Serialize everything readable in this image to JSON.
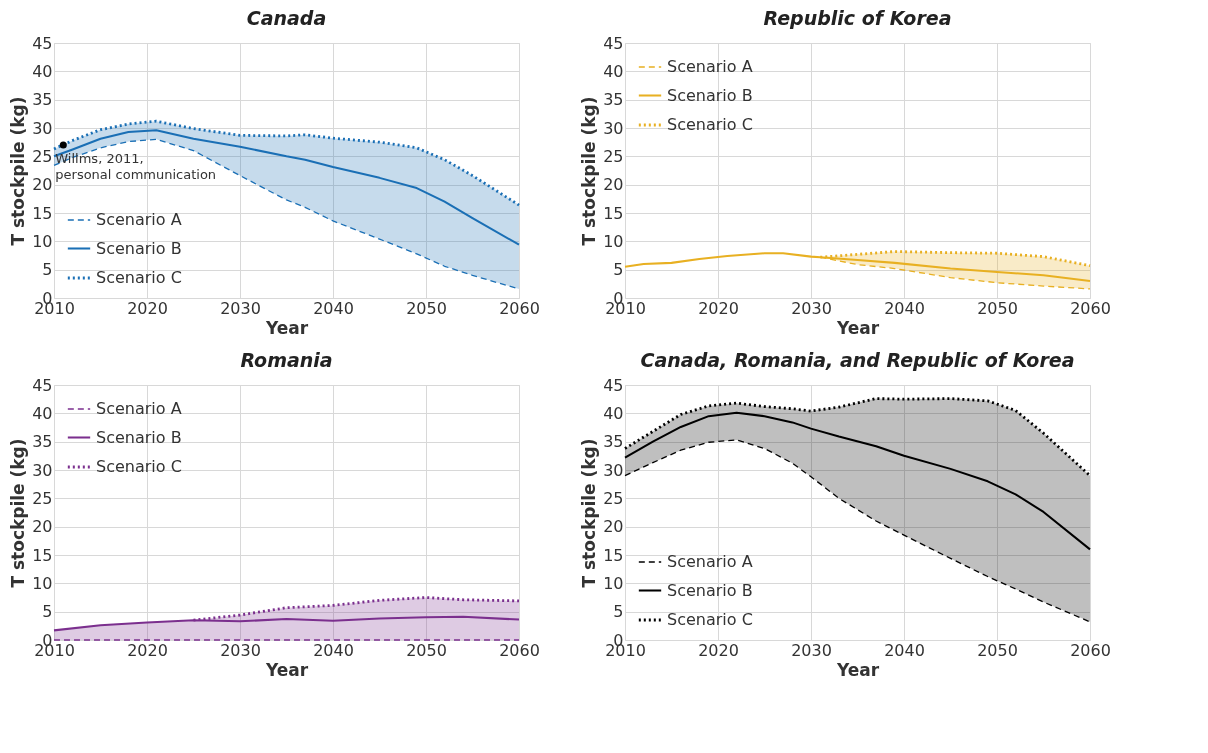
{
  "chart_data": [
    {
      "type": "line",
      "title": "Canada",
      "xlabel": "Year",
      "ylabel": "T stockpile (kg)",
      "x": [
        2010,
        2012,
        2015,
        2018,
        2021,
        2025,
        2030,
        2035,
        2037,
        2040,
        2045,
        2049,
        2052,
        2055,
        2060
      ],
      "xlim": [
        2010,
        2060
      ],
      "xticks": [
        2010,
        2020,
        2030,
        2040,
        2050,
        2060
      ],
      "ylim": [
        0,
        45
      ],
      "yticks": [
        0,
        5,
        10,
        15,
        20,
        25,
        30,
        35,
        40,
        45
      ],
      "grid": true,
      "legend": "bottom left",
      "series": [
        {
          "name": "Scenario A",
          "color": "#1a6fb5",
          "line_style": "dashed",
          "values": [
            23.4,
            24.8,
            26.5,
            27.6,
            28.0,
            26.0,
            21.6,
            17.3,
            16.0,
            13.6,
            10.4,
            7.8,
            5.6,
            4.0,
            1.6
          ]
        },
        {
          "name": "Scenario B",
          "color": "#1a6fb5",
          "line_style": "solid",
          "values": [
            25.0,
            26.2,
            28.1,
            29.3,
            29.6,
            28.1,
            26.7,
            25.0,
            24.4,
            23.1,
            21.2,
            19.4,
            17.0,
            14.1,
            9.4
          ],
          "lower": [
            23.4,
            24.8,
            26.5,
            27.6,
            28.0,
            26.0,
            21.6,
            17.3,
            16.0,
            13.6,
            10.4,
            7.8,
            5.6,
            4.0,
            1.6
          ],
          "upper": [
            26.3,
            27.8,
            29.7,
            30.7,
            31.2,
            29.9,
            28.7,
            28.6,
            28.8,
            28.2,
            27.5,
            26.5,
            24.4,
            21.6,
            16.4
          ]
        },
        {
          "name": "Scenario C",
          "color": "#1a6fb5",
          "line_style": "dotted",
          "values": [
            26.3,
            27.8,
            29.7,
            30.7,
            31.2,
            29.9,
            28.7,
            28.6,
            28.8,
            28.2,
            27.5,
            26.5,
            24.4,
            21.6,
            16.4
          ]
        }
      ],
      "annotations": [
        {
          "text": "Willms, 2011,\npersonal communication",
          "x": 2011,
          "y": 27
        }
      ]
    },
    {
      "type": "line",
      "title": "Republic of Korea",
      "xlabel": "Year",
      "ylabel": "T stockpile (kg)",
      "x": [
        2010,
        2012,
        2015,
        2018,
        2021,
        2025,
        2027,
        2030,
        2031,
        2035,
        2039,
        2045,
        2050,
        2055,
        2060
      ],
      "xlim": [
        2010,
        2060
      ],
      "xticks": [
        2010,
        2020,
        2030,
        2040,
        2050,
        2060
      ],
      "ylim": [
        0,
        45
      ],
      "yticks": [
        0,
        5,
        10,
        15,
        20,
        25,
        30,
        35,
        40,
        45
      ],
      "grid": true,
      "legend": "top left",
      "series": [
        {
          "name": "Scenario A",
          "color": "#e8b022",
          "line_style": "dashed",
          "values": [
            null,
            null,
            null,
            null,
            null,
            null,
            null,
            null,
            7.2,
            5.9,
            5.2,
            3.6,
            2.7,
            2.1,
            1.6
          ]
        },
        {
          "name": "Scenario B",
          "color": "#e8b022",
          "line_style": "solid",
          "values": [
            5.5,
            6.0,
            6.2,
            6.9,
            7.4,
            7.9,
            7.9,
            7.3,
            7.2,
            6.7,
            6.2,
            5.2,
            4.6,
            4.0,
            3.0
          ],
          "lower": [
            null,
            null,
            null,
            null,
            null,
            null,
            null,
            null,
            7.2,
            5.9,
            5.2,
            3.6,
            2.7,
            2.1,
            1.6
          ],
          "upper": [
            null,
            null,
            null,
            null,
            null,
            null,
            null,
            null,
            7.2,
            7.7,
            8.2,
            8.0,
            7.9,
            7.3,
            5.7
          ]
        },
        {
          "name": "Scenario C",
          "color": "#e8b022",
          "line_style": "dotted",
          "values": [
            null,
            null,
            null,
            null,
            null,
            null,
            null,
            null,
            7.2,
            7.7,
            8.2,
            8.0,
            7.9,
            7.3,
            5.7
          ]
        }
      ]
    },
    {
      "type": "line",
      "title": "Romania",
      "xlabel": "Year",
      "ylabel": "T stockpile (kg)",
      "x": [
        2010,
        2015,
        2020,
        2025,
        2030,
        2035,
        2040,
        2045,
        2050,
        2054,
        2060
      ],
      "xlim": [
        2010,
        2060
      ],
      "xticks": [
        2010,
        2020,
        2030,
        2040,
        2050,
        2060
      ],
      "ylim": [
        0,
        45
      ],
      "yticks": [
        0,
        5,
        10,
        15,
        20,
        25,
        30,
        35,
        40,
        45
      ],
      "grid": true,
      "legend": "top left",
      "series": [
        {
          "name": "Scenario A",
          "color": "#7b2f8e",
          "line_style": "dashed",
          "values": [
            0,
            0,
            0,
            0,
            0,
            0,
            0,
            0,
            0,
            0,
            0
          ]
        },
        {
          "name": "Scenario B",
          "color": "#7b2f8e",
          "line_style": "solid",
          "values": [
            1.7,
            2.6,
            3.1,
            3.5,
            3.3,
            3.7,
            3.4,
            3.8,
            4.0,
            4.1,
            3.6
          ],
          "lower": [
            0,
            0,
            0,
            0,
            0,
            0,
            0,
            0,
            0,
            0,
            0
          ],
          "upper": [
            1.7,
            2.6,
            3.1,
            3.5,
            4.4,
            5.7,
            6.1,
            7.0,
            7.5,
            7.1,
            6.9
          ]
        },
        {
          "name": "Scenario C",
          "color": "#7b2f8e",
          "line_style": "dotted",
          "values": [
            null,
            null,
            null,
            3.5,
            4.4,
            5.7,
            6.1,
            7.0,
            7.5,
            7.1,
            6.9
          ]
        }
      ]
    },
    {
      "type": "line",
      "title": "Canada, Romania, and Republic of Korea",
      "xlabel": "Year",
      "ylabel": "T stockpile (kg)",
      "x": [
        2010,
        2013,
        2016,
        2019,
        2022,
        2025,
        2028,
        2030,
        2033,
        2037,
        2040,
        2045,
        2049,
        2052,
        2055,
        2060
      ],
      "xlim": [
        2010,
        2060
      ],
      "xticks": [
        2010,
        2020,
        2030,
        2040,
        2050,
        2060
      ],
      "ylim": [
        0,
        45
      ],
      "yticks": [
        0,
        5,
        10,
        15,
        20,
        25,
        30,
        35,
        40,
        45
      ],
      "grid": true,
      "legend": "bottom left",
      "series": [
        {
          "name": "Scenario A",
          "color": "#000000",
          "line_style": "dashed",
          "values": [
            29.0,
            31.3,
            33.5,
            34.9,
            35.3,
            33.8,
            31.2,
            28.8,
            25.0,
            21.0,
            18.5,
            14.4,
            11.2,
            9.0,
            6.7,
            3.2
          ]
        },
        {
          "name": "Scenario B",
          "color": "#000000",
          "line_style": "solid",
          "values": [
            32.2,
            35.0,
            37.6,
            39.5,
            40.1,
            39.5,
            38.4,
            37.3,
            35.9,
            34.2,
            32.5,
            30.2,
            28.0,
            25.7,
            22.6,
            16.0
          ],
          "lower": [
            29.0,
            31.3,
            33.5,
            34.9,
            35.3,
            33.8,
            31.2,
            28.8,
            25.0,
            21.0,
            18.5,
            14.4,
            11.2,
            9.0,
            6.7,
            3.2
          ],
          "upper": [
            33.8,
            36.8,
            39.8,
            41.3,
            41.8,
            41.2,
            40.8,
            40.4,
            41.1,
            42.6,
            42.5,
            42.6,
            42.2,
            40.5,
            36.5,
            29.0
          ]
        },
        {
          "name": "Scenario C",
          "color": "#000000",
          "line_style": "dotted",
          "values": [
            33.8,
            36.8,
            39.8,
            41.3,
            41.8,
            41.2,
            40.8,
            40.4,
            41.1,
            42.6,
            42.5,
            42.6,
            42.2,
            40.5,
            36.5,
            29.0
          ]
        }
      ]
    }
  ]
}
